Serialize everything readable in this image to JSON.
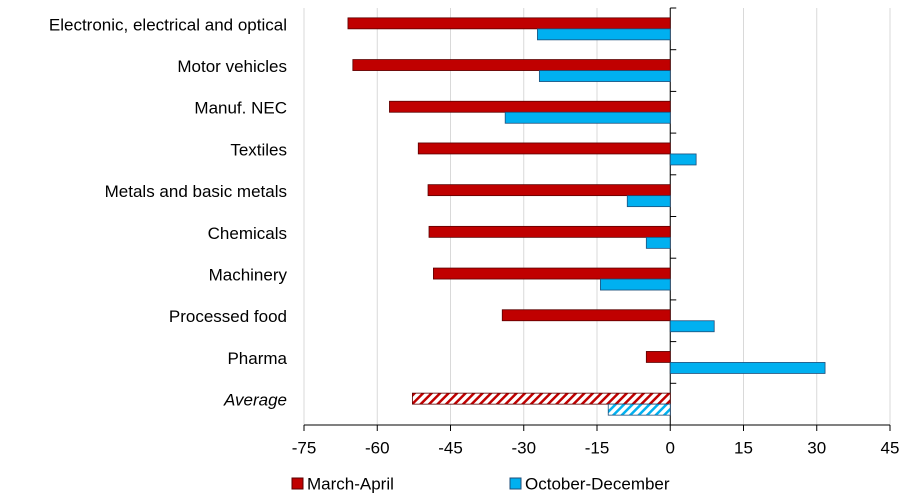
{
  "chart_data": {
    "type": "hbar",
    "categories": [
      "Electronic, electrical and optical",
      "Motor vehicles",
      "Manuf. NEC",
      "Textiles",
      "Metals and basic metals",
      "Chemicals",
      "Machinery",
      "Processed food",
      "Pharma",
      "Average"
    ],
    "series": [
      {
        "name": "March-April",
        "color": "#c00000",
        "values": [
          -66,
          -65,
          -57.5,
          -51.6,
          -49.6,
          -49.4,
          -48.5,
          -34.4,
          -4.9,
          -52.8
        ]
      },
      {
        "name": "October-December",
        "color": "#00b0f0",
        "values": [
          -27.2,
          -26.8,
          -33.8,
          5.3,
          -8.8,
          -4.9,
          -14.3,
          9,
          31.7,
          -12.7
        ]
      }
    ],
    "xlim": [
      -75,
      45
    ],
    "xticks": [
      -75,
      -60,
      -45,
      -30,
      -15,
      0,
      15,
      30,
      45
    ],
    "grid": true
  }
}
